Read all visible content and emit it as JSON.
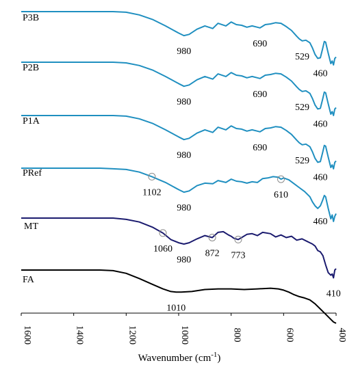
{
  "chart_data": {
    "type": "line",
    "title": "",
    "xlabel": "Wavenumber (cm",
    "xlabel_sup": "-1",
    "xlabel_close": ")",
    "ylabel": "",
    "xlim": [
      1600,
      400
    ],
    "x_reversed": true,
    "xticks": [
      "1600",
      "1400",
      "1200",
      "1000",
      "800",
      "600",
      "400"
    ],
    "grid": false,
    "legend": "none",
    "series": [
      {
        "name": "P3B",
        "color": "#1f8fc0",
        "x": [
          1600,
          1500,
          1400,
          1300,
          1250,
          1200,
          1150,
          1100,
          1050,
          1000,
          980,
          960,
          930,
          900,
          870,
          850,
          820,
          800,
          780,
          760,
          740,
          720,
          700,
          690,
          670,
          650,
          630,
          610,
          590,
          570,
          550,
          540,
          529,
          515,
          500,
          490,
          480,
          470,
          460,
          452,
          445,
          440,
          430,
          420,
          415,
          410,
          405,
          400
        ],
        "y": [
          0.0,
          0.0,
          0.0,
          0.0,
          0.0,
          -0.01,
          -0.05,
          -0.12,
          -0.22,
          -0.33,
          -0.37,
          -0.35,
          -0.27,
          -0.22,
          -0.26,
          -0.18,
          -0.22,
          -0.16,
          -0.2,
          -0.21,
          -0.24,
          -0.22,
          -0.24,
          -0.25,
          -0.2,
          -0.19,
          -0.17,
          -0.18,
          -0.23,
          -0.29,
          -0.38,
          -0.42,
          -0.45,
          -0.44,
          -0.48,
          -0.56,
          -0.66,
          -0.72,
          -0.71,
          -0.58,
          -0.46,
          -0.47,
          -0.64,
          -0.8,
          -0.76,
          -0.82,
          -0.72,
          -0.7
        ],
        "annotations": [
          {
            "x": 980,
            "label": "980"
          },
          {
            "x": 690,
            "label": "690"
          },
          {
            "x": 529,
            "label": "529"
          },
          {
            "x": 460,
            "label": "460"
          }
        ]
      },
      {
        "name": "P2B",
        "color": "#1f8fc0",
        "x": [
          1600,
          1500,
          1400,
          1300,
          1250,
          1200,
          1150,
          1100,
          1050,
          1000,
          980,
          960,
          930,
          900,
          870,
          850,
          820,
          800,
          780,
          760,
          740,
          720,
          700,
          690,
          670,
          650,
          630,
          610,
          590,
          570,
          550,
          540,
          529,
          515,
          500,
          490,
          480,
          470,
          460,
          452,
          445,
          440,
          430,
          420,
          415,
          410,
          405,
          400
        ],
        "y": [
          0.0,
          0.0,
          0.0,
          0.0,
          0.0,
          -0.01,
          -0.05,
          -0.12,
          -0.22,
          -0.33,
          -0.37,
          -0.35,
          -0.27,
          -0.22,
          -0.26,
          -0.18,
          -0.22,
          -0.16,
          -0.2,
          -0.21,
          -0.24,
          -0.22,
          -0.24,
          -0.25,
          -0.2,
          -0.19,
          -0.17,
          -0.18,
          -0.23,
          -0.29,
          -0.38,
          -0.42,
          -0.45,
          -0.44,
          -0.48,
          -0.56,
          -0.66,
          -0.72,
          -0.71,
          -0.58,
          -0.46,
          -0.47,
          -0.64,
          -0.8,
          -0.76,
          -0.82,
          -0.72,
          -0.7
        ],
        "annotations": [
          {
            "x": 980,
            "label": "980"
          },
          {
            "x": 690,
            "label": "690"
          },
          {
            "x": 529,
            "label": "529"
          },
          {
            "x": 460,
            "label": "460"
          }
        ]
      },
      {
        "name": "P1A",
        "color": "#1f8fc0",
        "x": [
          1600,
          1500,
          1400,
          1300,
          1250,
          1200,
          1150,
          1100,
          1050,
          1000,
          980,
          960,
          930,
          900,
          870,
          850,
          820,
          800,
          780,
          760,
          740,
          720,
          700,
          690,
          670,
          650,
          630,
          610,
          590,
          570,
          550,
          540,
          529,
          515,
          500,
          490,
          480,
          470,
          460,
          452,
          445,
          440,
          430,
          420,
          415,
          410,
          405,
          400
        ],
        "y": [
          0.0,
          0.0,
          0.0,
          0.0,
          0.0,
          -0.01,
          -0.05,
          -0.12,
          -0.22,
          -0.33,
          -0.37,
          -0.35,
          -0.27,
          -0.22,
          -0.26,
          -0.18,
          -0.22,
          -0.16,
          -0.2,
          -0.21,
          -0.24,
          -0.22,
          -0.24,
          -0.25,
          -0.2,
          -0.19,
          -0.17,
          -0.18,
          -0.23,
          -0.29,
          -0.38,
          -0.42,
          -0.45,
          -0.44,
          -0.48,
          -0.56,
          -0.66,
          -0.72,
          -0.71,
          -0.58,
          -0.46,
          -0.47,
          -0.64,
          -0.8,
          -0.76,
          -0.82,
          -0.72,
          -0.7
        ],
        "annotations": [
          {
            "x": 980,
            "label": "980"
          },
          {
            "x": 690,
            "label": "690"
          },
          {
            "x": 529,
            "label": "529"
          },
          {
            "x": 460,
            "label": "460"
          }
        ]
      },
      {
        "name": "PRef",
        "color": "#1f8fc0",
        "x": [
          1600,
          1500,
          1400,
          1300,
          1250,
          1200,
          1150,
          1102,
          1050,
          1000,
          980,
          960,
          930,
          900,
          870,
          850,
          820,
          800,
          780,
          760,
          740,
          720,
          700,
          680,
          660,
          640,
          620,
          610,
          600,
          580,
          560,
          540,
          520,
          500,
          490,
          480,
          470,
          460,
          452,
          445,
          440,
          430,
          420,
          415,
          410,
          405,
          400
        ],
        "y": [
          0.0,
          0.0,
          0.0,
          0.0,
          -0.01,
          -0.02,
          -0.06,
          -0.13,
          -0.22,
          -0.33,
          -0.37,
          -0.35,
          -0.27,
          -0.23,
          -0.24,
          -0.19,
          -0.22,
          -0.17,
          -0.2,
          -0.21,
          -0.23,
          -0.21,
          -0.22,
          -0.16,
          -0.15,
          -0.13,
          -0.14,
          -0.17,
          -0.15,
          -0.18,
          -0.24,
          -0.3,
          -0.36,
          -0.44,
          -0.52,
          -0.58,
          -0.62,
          -0.58,
          -0.5,
          -0.42,
          -0.44,
          -0.62,
          -0.78,
          -0.72,
          -0.82,
          -0.74,
          -0.7
        ],
        "annotations": [
          {
            "x": 1102,
            "label": "1102",
            "marker": true
          },
          {
            "x": 980,
            "label": "980"
          },
          {
            "x": 610,
            "label": "610",
            "marker": true
          },
          {
            "x": 460,
            "label": "460"
          }
        ]
      },
      {
        "name": "MT",
        "color": "#1a1a6e",
        "x": [
          1600,
          1500,
          1400,
          1300,
          1250,
          1200,
          1150,
          1100,
          1060,
          1030,
          1000,
          980,
          960,
          930,
          900,
          872,
          850,
          830,
          810,
          800,
          790,
          773,
          760,
          740,
          720,
          700,
          680,
          650,
          630,
          610,
          590,
          570,
          550,
          530,
          510,
          500,
          490,
          480,
          470,
          460,
          450,
          440,
          430,
          420,
          415,
          410,
          405,
          400
        ],
        "y": [
          0.0,
          0.0,
          0.0,
          0.0,
          0.0,
          -0.02,
          -0.06,
          -0.14,
          -0.23,
          -0.33,
          -0.38,
          -0.4,
          -0.38,
          -0.32,
          -0.27,
          -0.3,
          -0.22,
          -0.21,
          -0.26,
          -0.28,
          -0.31,
          -0.33,
          -0.3,
          -0.25,
          -0.24,
          -0.27,
          -0.22,
          -0.24,
          -0.29,
          -0.26,
          -0.3,
          -0.28,
          -0.34,
          -0.32,
          -0.36,
          -0.38,
          -0.4,
          -0.43,
          -0.5,
          -0.52,
          -0.58,
          -0.72,
          -0.84,
          -0.88,
          -0.86,
          -0.92,
          -0.8,
          -0.78
        ],
        "annotations": [
          {
            "x": 1060,
            "label": "1060",
            "marker": true
          },
          {
            "x": 980,
            "label": "980"
          },
          {
            "x": 872,
            "label": "872",
            "marker": true
          },
          {
            "x": 773,
            "label": "773",
            "marker": true
          },
          {
            "x": 410,
            "label": "410"
          }
        ]
      },
      {
        "name": "FA",
        "color": "#000000",
        "x": [
          1600,
          1500,
          1400,
          1300,
          1250,
          1200,
          1150,
          1100,
          1060,
          1030,
          1010,
          990,
          950,
          900,
          850,
          800,
          750,
          700,
          650,
          620,
          600,
          580,
          560,
          540,
          520,
          500,
          480,
          460,
          440,
          420,
          410,
          400
        ],
        "y": [
          0.0,
          0.0,
          0.0,
          0.0,
          -0.01,
          -0.05,
          -0.13,
          -0.22,
          -0.29,
          -0.33,
          -0.34,
          -0.34,
          -0.33,
          -0.3,
          -0.29,
          -0.29,
          -0.3,
          -0.29,
          -0.28,
          -0.29,
          -0.31,
          -0.34,
          -0.38,
          -0.41,
          -0.43,
          -0.46,
          -0.52,
          -0.6,
          -0.68,
          -0.76,
          -0.8,
          -0.82
        ],
        "annotations": [
          {
            "x": 1010,
            "label": "1010"
          }
        ]
      }
    ]
  }
}
